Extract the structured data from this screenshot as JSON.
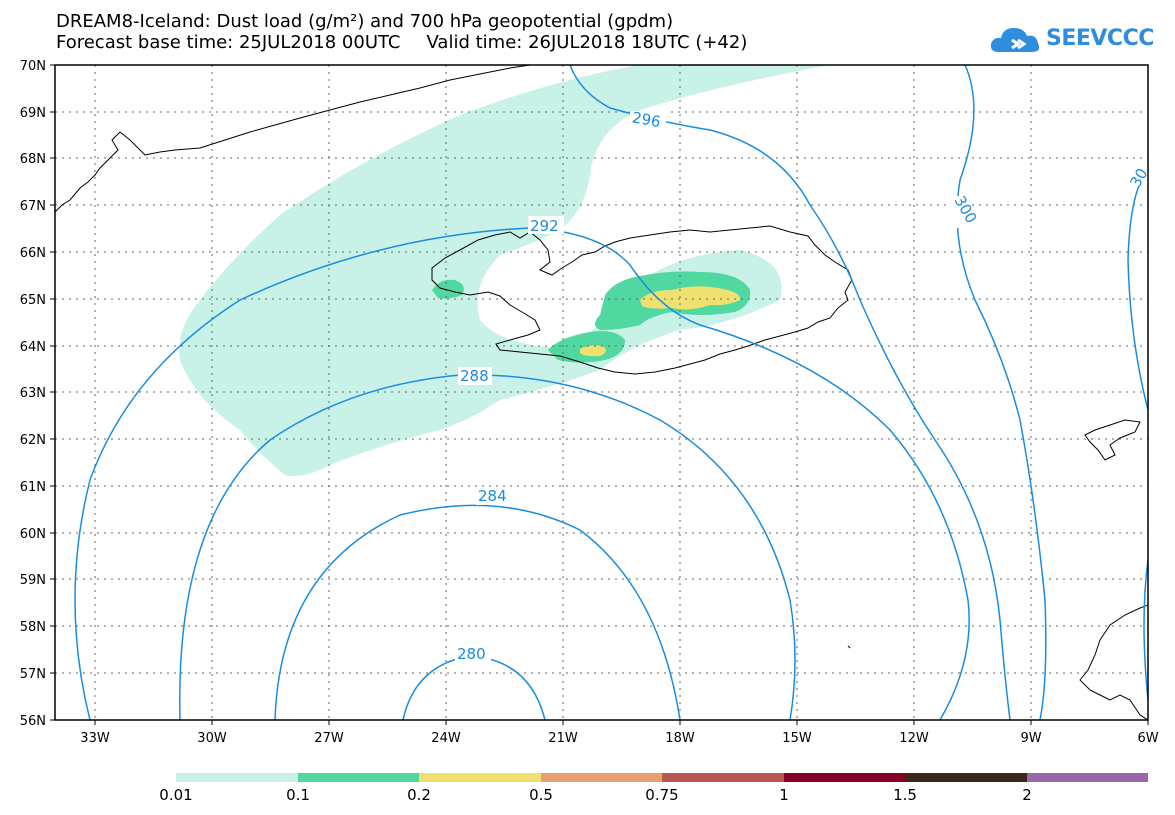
{
  "header": {
    "title_line1": "DREAM8-Iceland: Dust load (g/m²) and 700 hPa geopotential (gpdm)",
    "base_time": "Forecast base time: 25JUL2018 00UTC",
    "valid_time": "Valid time: 26JUL2018 18UTC (+42)"
  },
  "logo": {
    "text": "SEEVCCC",
    "icon": "cloud-logo-icon",
    "color": "#2f8de0"
  },
  "map": {
    "lat_labels": [
      "70N",
      "69N",
      "68N",
      "67N",
      "66N",
      "65N",
      "64N",
      "63N",
      "62N",
      "61N",
      "60N",
      "59N",
      "58N",
      "57N",
      "56N"
    ],
    "lon_labels": [
      "33W",
      "30W",
      "27W",
      "24W",
      "21W",
      "18W",
      "15W",
      "12W",
      "9W",
      "6W"
    ],
    "contour_labels": [
      "296",
      "300",
      "30",
      "292",
      "288",
      "284",
      "280"
    ],
    "contour_color": "#1a8ce0",
    "coast_color": "#000000"
  },
  "colorbar": {
    "colors": [
      "#c8f1e8",
      "#50d8a0",
      "#f0e070",
      "#e8a070",
      "#b85850",
      "#880028",
      "#3a2818",
      "#9868a8"
    ],
    "labels": [
      "0.01",
      "0.1",
      "0.2",
      "0.5",
      "0.75",
      "1",
      "1.5",
      "2"
    ]
  }
}
